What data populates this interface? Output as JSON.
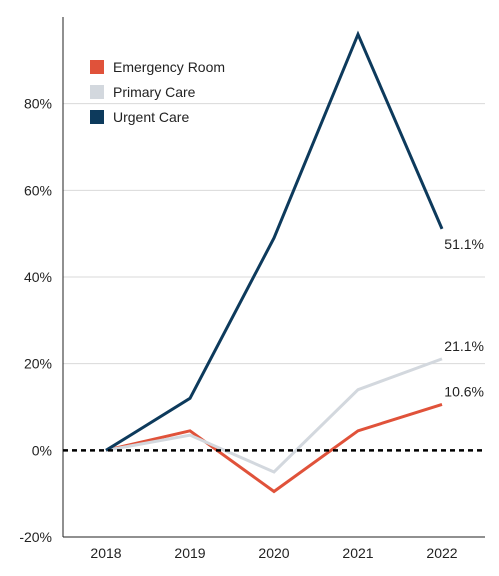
{
  "chart_data": {
    "type": "line",
    "title": "",
    "xlabel": "",
    "ylabel": "",
    "x": [
      "2018",
      "2019",
      "2020",
      "2021",
      "2022"
    ],
    "ylim": [
      -20,
      100
    ],
    "yticks": [
      -20,
      0,
      20,
      40,
      60,
      80
    ],
    "ytick_labels": [
      "-20%",
      "0%",
      "20%",
      "40%",
      "60%",
      "80%"
    ],
    "grid": "horizontal",
    "zero_line": "dashed",
    "legend_position": "top-left",
    "series": [
      {
        "name": "Emergency Room",
        "color": "#e0523a",
        "values": [
          0,
          4.5,
          -9.5,
          4.5,
          10.6
        ],
        "end_label": "10.6%"
      },
      {
        "name": "Primary Care",
        "color": "#d3d8de",
        "values": [
          0,
          3.5,
          -5,
          14,
          21.1
        ],
        "end_label": "21.1%"
      },
      {
        "name": "Urgent Care",
        "color": "#0d3a5c",
        "values": [
          0,
          12,
          49,
          96,
          51.1
        ],
        "end_label": "51.1%"
      }
    ]
  }
}
